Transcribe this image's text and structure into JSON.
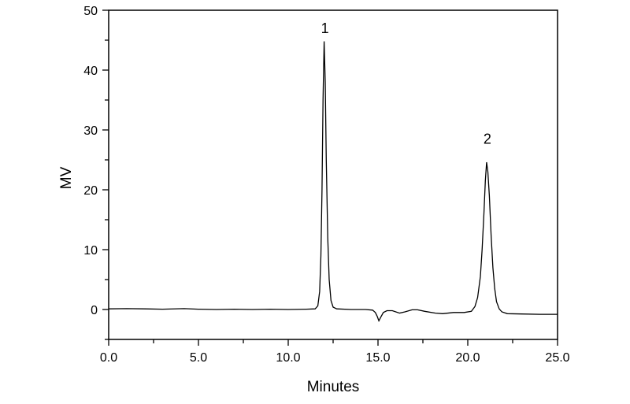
{
  "chart_data": {
    "type": "line",
    "title": "",
    "xlabel": "Minutes",
    "ylabel": "MV",
    "xlim": [
      0,
      25
    ],
    "ylim": [
      -5,
      50
    ],
    "grid": false,
    "x_ticks": [
      "0.0",
      "5.0",
      "10.0",
      "15.0",
      "20.0",
      "25.0"
    ],
    "y_ticks": [
      "0",
      "10",
      "20",
      "30",
      "40",
      "50"
    ],
    "line_color": "#000000",
    "annotations": [
      {
        "text": "1",
        "x": 12.0,
        "y": 47
      },
      {
        "text": "2",
        "x": 21.05,
        "y": 28.5
      }
    ],
    "series": [
      {
        "points": [
          [
            0,
            0.1
          ],
          [
            1,
            0.15
          ],
          [
            2,
            0.1
          ],
          [
            3,
            0.05
          ],
          [
            4.2,
            0.15
          ],
          [
            5,
            0.05
          ],
          [
            6,
            0.0
          ],
          [
            7,
            0.05
          ],
          [
            8,
            0.0
          ],
          [
            9,
            0.05
          ],
          [
            10,
            0.0
          ],
          [
            11,
            0.05
          ],
          [
            11.5,
            0.1
          ],
          [
            11.65,
            0.6
          ],
          [
            11.75,
            3
          ],
          [
            11.82,
            9
          ],
          [
            11.88,
            20
          ],
          [
            11.94,
            35
          ],
          [
            12.0,
            44.8
          ],
          [
            12.06,
            38
          ],
          [
            12.12,
            25
          ],
          [
            12.2,
            12
          ],
          [
            12.28,
            5
          ],
          [
            12.38,
            1.5
          ],
          [
            12.5,
            0.4
          ],
          [
            12.7,
            0.1
          ],
          [
            13.5,
            0.0
          ],
          [
            14.3,
            0.0
          ],
          [
            14.7,
            -0.1
          ],
          [
            14.85,
            -0.5
          ],
          [
            14.95,
            -1.1
          ],
          [
            15.05,
            -1.9
          ],
          [
            15.15,
            -1.3
          ],
          [
            15.3,
            -0.5
          ],
          [
            15.5,
            -0.2
          ],
          [
            15.8,
            -0.2
          ],
          [
            16.2,
            -0.6
          ],
          [
            16.5,
            -0.4
          ],
          [
            16.9,
            -0.05
          ],
          [
            17.2,
            -0.05
          ],
          [
            17.6,
            -0.3
          ],
          [
            18.2,
            -0.6
          ],
          [
            18.6,
            -0.7
          ],
          [
            19.2,
            -0.5
          ],
          [
            19.8,
            -0.5
          ],
          [
            20.2,
            -0.3
          ],
          [
            20.4,
            0.5
          ],
          [
            20.55,
            2
          ],
          [
            20.7,
            5.5
          ],
          [
            20.8,
            10
          ],
          [
            20.9,
            16
          ],
          [
            20.98,
            21.5
          ],
          [
            21.05,
            24.6
          ],
          [
            21.12,
            23
          ],
          [
            21.2,
            19
          ],
          [
            21.3,
            12.5
          ],
          [
            21.4,
            7
          ],
          [
            21.5,
            3.5
          ],
          [
            21.6,
            1.3
          ],
          [
            21.75,
            0.1
          ],
          [
            21.9,
            -0.4
          ],
          [
            22.2,
            -0.7
          ],
          [
            23,
            -0.75
          ],
          [
            24,
            -0.8
          ],
          [
            25,
            -0.8
          ]
        ]
      }
    ]
  }
}
